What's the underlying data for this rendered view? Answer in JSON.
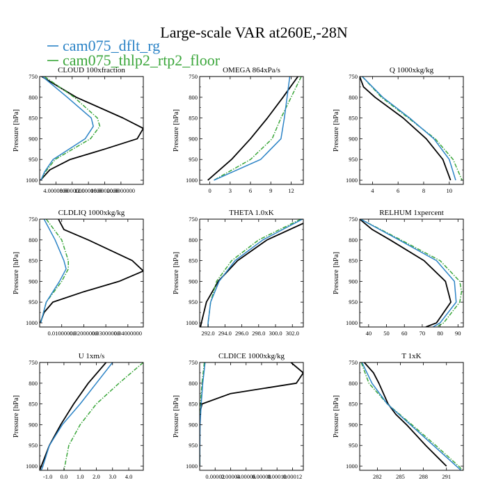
{
  "title": "Large-scale VAR at260E,-28N",
  "legend": [
    {
      "name": "cam075_dflt_rg",
      "color": "#2b83c6",
      "dash": "solid"
    },
    {
      "name": "cam075_thlp2_rtp2_floor",
      "color": "#3aa63a",
      "dash": "dashdot"
    }
  ],
  "black_color": "#000000",
  "pressure_levels": [
    750,
    800,
    850,
    900,
    950,
    1000
  ],
  "y_axis_label": "Pressure [hPa]",
  "chart_data": [
    {
      "type": "line",
      "title": "CLOUD  100xfraction",
      "ylabel": "Pressure [hPa]",
      "xlim": [
        0,
        25.5
      ],
      "ylim": [
        1010,
        750
      ],
      "xticks": [
        4,
        8,
        12,
        16,
        20
      ],
      "xtick_labels": [
        "4.0000000",
        "8.0000000",
        "12.0000000",
        "16.0000000",
        "20.0000000"
      ],
      "series": [
        {
          "name": "cam075_dflt_rg",
          "y": [
            750,
            800,
            850,
            870,
            900,
            950,
            980,
            1000
          ],
          "x": [
            0.7,
            6.8,
            12.7,
            13.2,
            11.2,
            3.3,
            1.2,
            0.3
          ]
        },
        {
          "name": "cam075_thlp2_rtp2_floor",
          "y": [
            750,
            800,
            850,
            870,
            900,
            950,
            980,
            1000
          ],
          "x": [
            1.2,
            8.5,
            14.2,
            14.8,
            12.5,
            3.8,
            1.4,
            0.3
          ]
        },
        {
          "name": "",
          "y": [
            750,
            800,
            850,
            875,
            900,
            925,
            950,
            975,
            1000
          ],
          "x": [
            0.5,
            9.0,
            20.5,
            25.5,
            24.0,
            16.0,
            7.5,
            2.5,
            0.2
          ]
        }
      ]
    },
    {
      "type": "line",
      "title": "OMEGA  864xPa/s",
      "ylabel": "Pressure [hPa]",
      "xlim": [
        -1.5,
        13.8
      ],
      "ylim": [
        1010,
        750
      ],
      "xticks": [
        0,
        3,
        6,
        9,
        12
      ],
      "xtick_labels": [
        "0",
        "3",
        "6",
        "9",
        "12"
      ],
      "series": [
        {
          "name": "cam075_dflt_rg",
          "y": [
            750,
            800,
            850,
            900,
            950,
            1000
          ],
          "x": [
            11.8,
            11.4,
            11.0,
            10.5,
            7.5,
            0.6
          ]
        },
        {
          "name": "cam075_thlp2_rtp2_floor",
          "y": [
            750,
            800,
            850,
            900,
            950,
            1000
          ],
          "x": [
            13.5,
            12.0,
            10.5,
            9.2,
            6.0,
            0.6
          ]
        },
        {
          "name": "",
          "y": [
            750,
            800,
            850,
            900,
            950,
            1000
          ],
          "x": [
            13.0,
            10.8,
            8.5,
            6.0,
            3.2,
            -0.3
          ]
        }
      ]
    },
    {
      "type": "line",
      "title": "Q  1000xkg/kg",
      "ylabel": "Pressure [hPa]",
      "xlim": [
        3.0,
        11.1
      ],
      "ylim": [
        1010,
        750
      ],
      "xticks": [
        4,
        6,
        8,
        10
      ],
      "xtick_labels": [
        "4",
        "6",
        "8",
        "10"
      ],
      "series": [
        {
          "name": "cam075_dflt_rg",
          "y": [
            750,
            800,
            850,
            900,
            950,
            1000
          ],
          "x": [
            3.2,
            4.8,
            6.9,
            8.8,
            10.0,
            10.5
          ]
        },
        {
          "name": "cam075_thlp2_rtp2_floor",
          "y": [
            750,
            800,
            850,
            900,
            950,
            1000
          ],
          "x": [
            3.2,
            4.7,
            6.8,
            8.9,
            10.3,
            11.0
          ]
        },
        {
          "name": "",
          "y": [
            750,
            775,
            800,
            850,
            900,
            950,
            1000
          ],
          "x": [
            3.0,
            3.3,
            4.2,
            6.4,
            8.2,
            9.5,
            10.1
          ]
        }
      ]
    },
    {
      "type": "line",
      "title": "CLDLIQ  1000xkg/kg",
      "ylabel": "Pressure [hPa]",
      "xlim": [
        0,
        0.047
      ],
      "ylim": [
        1010,
        750
      ],
      "xticks": [
        0.01,
        0.02,
        0.03,
        0.04
      ],
      "xtick_labels": [
        "0.01000000",
        "0.02000000",
        "0.03000000",
        "0.04000000"
      ],
      "series": [
        {
          "name": "cam075_dflt_rg",
          "y": [
            750,
            800,
            850,
            870,
            900,
            950,
            1000
          ],
          "x": [
            0.002,
            0.007,
            0.011,
            0.012,
            0.009,
            0.003,
            0.0005
          ]
        },
        {
          "name": "cam075_thlp2_rtp2_floor",
          "y": [
            750,
            800,
            850,
            870,
            900,
            950,
            1000
          ],
          "x": [
            0.003,
            0.01,
            0.013,
            0.013,
            0.01,
            0.003,
            0.0005
          ]
        },
        {
          "name": "",
          "y": [
            750,
            775,
            800,
            850,
            875,
            900,
            925,
            950,
            975,
            1000
          ],
          "x": [
            0.0085,
            0.011,
            0.022,
            0.042,
            0.047,
            0.036,
            0.02,
            0.006,
            0.002,
            0.0003
          ]
        }
      ]
    },
    {
      "type": "line",
      "title": "THETA  1.0xK",
      "ylabel": "Pressure [hPa]",
      "xlim": [
        291.0,
        303.3
      ],
      "ylim": [
        1010,
        750
      ],
      "xticks": [
        292,
        294,
        296,
        298,
        300,
        302
      ],
      "xtick_labels": [
        "292.0",
        "294.0",
        "296.0",
        "298.0",
        "300.0",
        "302.0"
      ],
      "series": [
        {
          "name": "cam075_dflt_rg",
          "y": [
            750,
            800,
            850,
            900,
            950,
            1000,
            1010
          ],
          "x": [
            303.2,
            298.5,
            295.2,
            293.3,
            292.3,
            292.0,
            292.0
          ]
        },
        {
          "name": "cam075_thlp2_rtp2_floor",
          "y": [
            750,
            800,
            850,
            900,
            950,
            1000,
            1010
          ],
          "x": [
            303.0,
            298.0,
            294.8,
            293.0,
            292.3,
            292.0,
            292.0
          ]
        },
        {
          "name": "",
          "y": [
            760,
            800,
            850,
            900,
            950,
            1000,
            1010
          ],
          "x": [
            303.3,
            299.0,
            295.5,
            293.2,
            291.8,
            291.2,
            291.1
          ]
        }
      ]
    },
    {
      "type": "line",
      "title": "RELHUM  1xpercent",
      "ylabel": "Pressure [hPa]",
      "xlim": [
        35,
        93
      ],
      "ylim": [
        1010,
        750
      ],
      "xticks": [
        40,
        50,
        60,
        70,
        80,
        90
      ],
      "xtick_labels": [
        "40",
        "50",
        "60",
        "70",
        "80",
        "90"
      ],
      "series": [
        {
          "name": "cam075_dflt_rg",
          "y": [
            750,
            800,
            850,
            900,
            950,
            1000,
            1010
          ],
          "x": [
            35.5,
            57,
            78,
            88,
            89,
            80,
            76
          ]
        },
        {
          "name": "cam075_thlp2_rtp2_floor",
          "y": [
            750,
            800,
            850,
            900,
            925,
            950,
            1000,
            1010
          ],
          "x": [
            35.5,
            58,
            80,
            91,
            92,
            91,
            82,
            78
          ]
        },
        {
          "name": "",
          "y": [
            750,
            775,
            800,
            850,
            900,
            950,
            1000,
            1010
          ],
          "x": [
            35.0,
            42,
            52,
            71,
            83,
            86,
            78,
            72
          ]
        }
      ]
    },
    {
      "type": "line",
      "title": "U  1xm/s",
      "ylabel": "Pressure [hPa]",
      "xlim": [
        -1.5,
        4.9
      ],
      "ylim": [
        1010,
        750
      ],
      "xticks": [
        -1,
        0,
        1,
        2,
        3,
        4
      ],
      "xtick_labels": [
        "-1.0",
        "0.0",
        "1.0",
        "2.0",
        "3.0",
        "4.0"
      ],
      "series": [
        {
          "name": "cam075_dflt_rg",
          "y": [
            750,
            800,
            850,
            900,
            950,
            1000,
            1010
          ],
          "x": [
            3.0,
            2.0,
            1.0,
            -0.1,
            -0.9,
            -1.3,
            -1.4
          ]
        },
        {
          "name": "cam075_thlp2_rtp2_floor",
          "y": [
            750,
            800,
            850,
            900,
            950,
            1000,
            1010
          ],
          "x": [
            4.9,
            3.4,
            2.0,
            1.0,
            0.3,
            0.05,
            0.0
          ]
        },
        {
          "name": "",
          "y": [
            750,
            800,
            850,
            900,
            950,
            1000,
            1010
          ],
          "x": [
            2.6,
            1.5,
            0.6,
            -0.2,
            -0.9,
            -1.4,
            -1.5
          ]
        }
      ]
    },
    {
      "type": "line",
      "title": "CLDICE  1000xkg/kg",
      "ylabel": "Pressure [hPa]",
      "xlim": [
        0,
        0.000134
      ],
      "ylim": [
        1010,
        750
      ],
      "xticks": [
        2e-05,
        4e-05,
        6e-05,
        8e-05,
        0.0001,
        0.00012
      ],
      "xtick_labels": [
        "0.00002",
        "0.00004",
        "0.00006",
        "0.00008",
        "0.00010",
        "0.00012"
      ],
      "series": [
        {
          "name": "cam075_dflt_rg",
          "y": [
            750,
            800,
            850,
            900,
            1000
          ],
          "x": [
            7e-06,
            4e-06,
            2e-06,
            5e-07,
            0.0
          ]
        },
        {
          "name": "cam075_thlp2_rtp2_floor",
          "y": [
            750,
            800,
            850,
            900,
            1000
          ],
          "x": [
            6e-06,
            3e-06,
            1e-06,
            3e-07,
            0.0
          ]
        },
        {
          "name": "",
          "y": [
            750,
            775,
            800,
            825,
            850,
            870,
            900,
            1000
          ],
          "x": [
            0.000118,
            0.000134,
            0.000125,
            4e-05,
            3e-06,
            5e-07,
            0.0,
            0.0
          ]
        }
      ]
    },
    {
      "type": "line",
      "title": "T  1xK",
      "ylabel": "Pressure [hPa]",
      "xlim": [
        279.7,
        293.2
      ],
      "ylim": [
        1010,
        750
      ],
      "xticks": [
        282,
        285,
        288,
        291
      ],
      "xtick_labels": [
        "282",
        "285",
        "288",
        "291"
      ],
      "series": [
        {
          "name": "cam075_dflt_rg",
          "y": [
            750,
            800,
            850,
            900,
            950,
            1000,
            1010
          ],
          "x": [
            280.0,
            281.3,
            283.3,
            286.3,
            289.3,
            292.3,
            292.9
          ]
        },
        {
          "name": "cam075_thlp2_rtp2_floor",
          "y": [
            750,
            800,
            850,
            900,
            950,
            1000,
            1010
          ],
          "x": [
            279.9,
            280.9,
            283.3,
            286.5,
            289.6,
            292.6,
            293.1
          ]
        },
        {
          "name": "",
          "y": [
            750,
            775,
            800,
            850,
            875,
            900,
            950,
            1000
          ],
          "x": [
            280.3,
            281.5,
            282.2,
            283.4,
            284.4,
            285.8,
            288.3,
            291.0
          ]
        }
      ]
    }
  ]
}
